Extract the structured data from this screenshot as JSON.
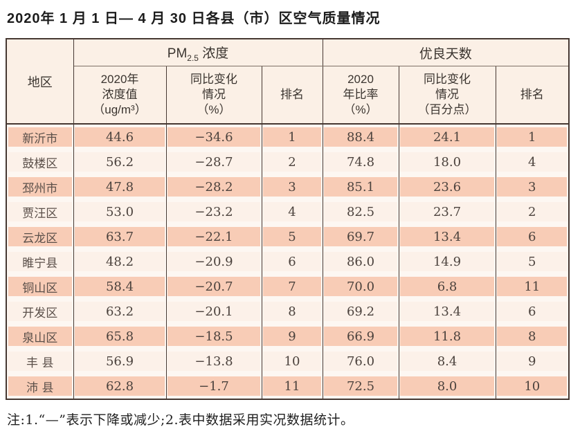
{
  "title": "2020年 1 月 1 日— 4 月 30 日各县（市）区空气质量情况",
  "colors": {
    "row_dark": "#f8ccb6",
    "row_light": "#fcf1e9",
    "header_bg": "#fbf0e6",
    "border": "#453731"
  },
  "table": {
    "region_header": "地区",
    "pm_group": {
      "prefix": "PM",
      "sub": "2.5",
      "suffix": " 浓度"
    },
    "days_group_label": "优良天数",
    "sub_headers": [
      "2020年\n浓度值\n（ug/m³）",
      "同比变化\n情况\n（%）",
      "排名",
      "2020\n年比率\n（%）",
      "同比变化\n情况\n（百分点）",
      "排名"
    ],
    "rows": [
      {
        "region": "新沂市",
        "pm_value": "44.6",
        "pm_change": "−34.6",
        "pm_rank": "1",
        "days_rate": "88.4",
        "days_change": "24.1",
        "days_rank": "1"
      },
      {
        "region": "鼓楼区",
        "pm_value": "56.2",
        "pm_change": "−28.7",
        "pm_rank": "2",
        "days_rate": "74.8",
        "days_change": "18.0",
        "days_rank": "4"
      },
      {
        "region": "邳州市",
        "pm_value": "47.8",
        "pm_change": "−28.2",
        "pm_rank": "3",
        "days_rate": "85.1",
        "days_change": "23.6",
        "days_rank": "3"
      },
      {
        "region": "贾汪区",
        "pm_value": "53.0",
        "pm_change": "−23.2",
        "pm_rank": "4",
        "days_rate": "82.5",
        "days_change": "23.7",
        "days_rank": "2"
      },
      {
        "region": "云龙区",
        "pm_value": "63.7",
        "pm_change": "−22.1",
        "pm_rank": "5",
        "days_rate": "69.7",
        "days_change": "13.4",
        "days_rank": "6"
      },
      {
        "region": "睢宁县",
        "pm_value": "48.2",
        "pm_change": "−20.9",
        "pm_rank": "6",
        "days_rate": "86.0",
        "days_change": "14.9",
        "days_rank": "5"
      },
      {
        "region": "铜山区",
        "pm_value": "58.4",
        "pm_change": "−20.7",
        "pm_rank": "7",
        "days_rate": "70.0",
        "days_change": "6.8",
        "days_rank": "11"
      },
      {
        "region": "开发区",
        "pm_value": "63.2",
        "pm_change": "−20.1",
        "pm_rank": "8",
        "days_rate": "69.2",
        "days_change": "13.4",
        "days_rank": "6"
      },
      {
        "region": "泉山区",
        "pm_value": "65.8",
        "pm_change": "−18.5",
        "pm_rank": "9",
        "days_rate": "66.9",
        "days_change": "11.8",
        "days_rank": "8"
      },
      {
        "region": "丰 县",
        "pm_value": "56.9",
        "pm_change": "−13.8",
        "pm_rank": "10",
        "days_rate": "76.0",
        "days_change": "8.4",
        "days_rank": "9"
      },
      {
        "region": "沛 县",
        "pm_value": "62.8",
        "pm_change": "−1.7",
        "pm_rank": "11",
        "days_rate": "72.5",
        "days_change": "8.0",
        "days_rank": "10"
      }
    ]
  },
  "note": "注:1.“—”表示下降或减少;2.表中数据采用实况数据统计。"
}
